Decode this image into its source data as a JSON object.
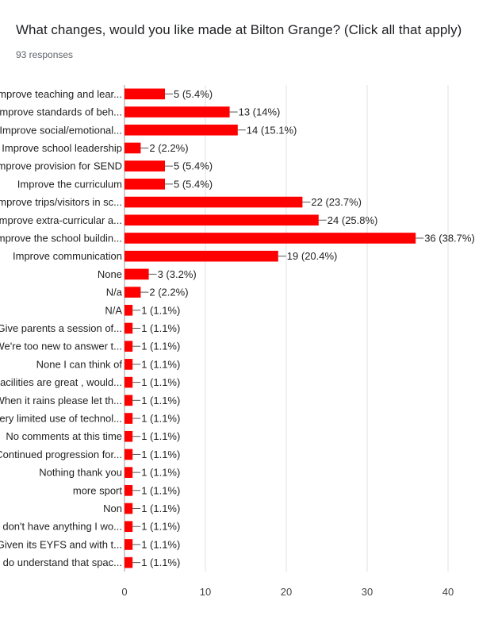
{
  "title": "What changes, would you like made at Bilton Grange? (Click all that apply)",
  "subtitle": "93 responses",
  "chart_data": {
    "type": "bar",
    "orientation": "horizontal",
    "title": "What changes, would you like made at Bilton Grange? (Click all that apply)",
    "subtitle": "93 responses",
    "xlabel": "",
    "ylabel": "",
    "xlim": [
      0,
      40
    ],
    "x_ticks": [
      "0",
      "10",
      "20",
      "30",
      "40"
    ],
    "grid": "vertical",
    "legend": "none",
    "bar_color": "#ff0000",
    "categories": [
      "Improve teaching and lear...",
      "Improve standards of beh...",
      "Improve social/emotional...",
      "Improve school leadership",
      "Improve provision for SEND",
      "Improve the curriculum",
      "Improve trips/visitors in sc...",
      "Improve extra-curricular a...",
      "Improve the school buildin...",
      "Improve communication",
      "None",
      "N/a",
      "N/A",
      "Give parents a session of...",
      "We're too new to answer t...",
      "None I can think of",
      "Facilities are great , would...",
      "When it rains please let th...",
      "Very limited use of technol...",
      "No comments at this time",
      "Continued progression for...",
      "Nothing thank you",
      "more sport",
      "Non",
      "I don't have anything I wo...",
      "Given its EYFS and with t...",
      "I do understand that spac..."
    ],
    "values": [
      5,
      13,
      14,
      2,
      5,
      5,
      22,
      24,
      36,
      19,
      3,
      2,
      1,
      1,
      1,
      1,
      1,
      1,
      1,
      1,
      1,
      1,
      1,
      1,
      1,
      1,
      1
    ],
    "labels": [
      "5 (5.4%)",
      "13 (14%)",
      "14 (15.1%)",
      "2 (2.2%)",
      "5 (5.4%)",
      "5 (5.4%)",
      "22 (23.7%)",
      "24 (25.8%)",
      "36 (38.7%)",
      "19 (20.4%)",
      "3 (3.2%)",
      "2 (2.2%)",
      "1 (1.1%)",
      "1 (1.1%)",
      "1 (1.1%)",
      "1 (1.1%)",
      "1 (1.1%)",
      "1 (1.1%)",
      "1 (1.1%)",
      "1 (1.1%)",
      "1 (1.1%)",
      "1 (1.1%)",
      "1 (1.1%)",
      "1 (1.1%)",
      "1 (1.1%)",
      "1 (1.1%)",
      "1 (1.1%)"
    ]
  }
}
